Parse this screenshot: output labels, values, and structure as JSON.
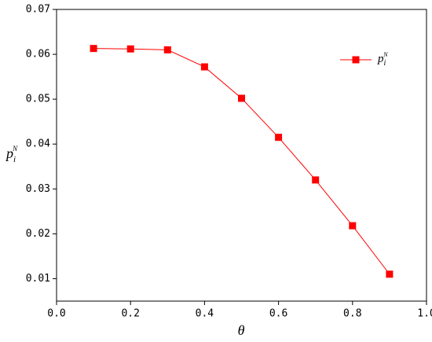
{
  "chart_data": {
    "type": "line",
    "xlabel": "θ",
    "ylabel": "p",
    "ylabel_sub": "i",
    "ylabel_sup": "N",
    "x": [
      0.1,
      0.2,
      0.3,
      0.4,
      0.5,
      0.6,
      0.7,
      0.8,
      0.9
    ],
    "series": [
      {
        "name": "p",
        "name_sub": "i",
        "name_sup": "N",
        "color": "#ff0000",
        "values": [
          0.0613,
          0.0612,
          0.061,
          0.0572,
          0.0502,
          0.0415,
          0.032,
          0.0218,
          0.011
        ]
      }
    ],
    "xlim": [
      0,
      1
    ],
    "xticks": [
      {
        "value": 0,
        "label": "0.0"
      },
      0.2,
      0.4,
      0.6,
      0.8,
      {
        "value": 1,
        "label": "1.0"
      }
    ],
    "ylim": [
      0.005,
      0.07
    ],
    "yticks": [
      0.01,
      0.02,
      0.03,
      0.04,
      0.05,
      0.06,
      0.07
    ],
    "legend": "upper right"
  }
}
